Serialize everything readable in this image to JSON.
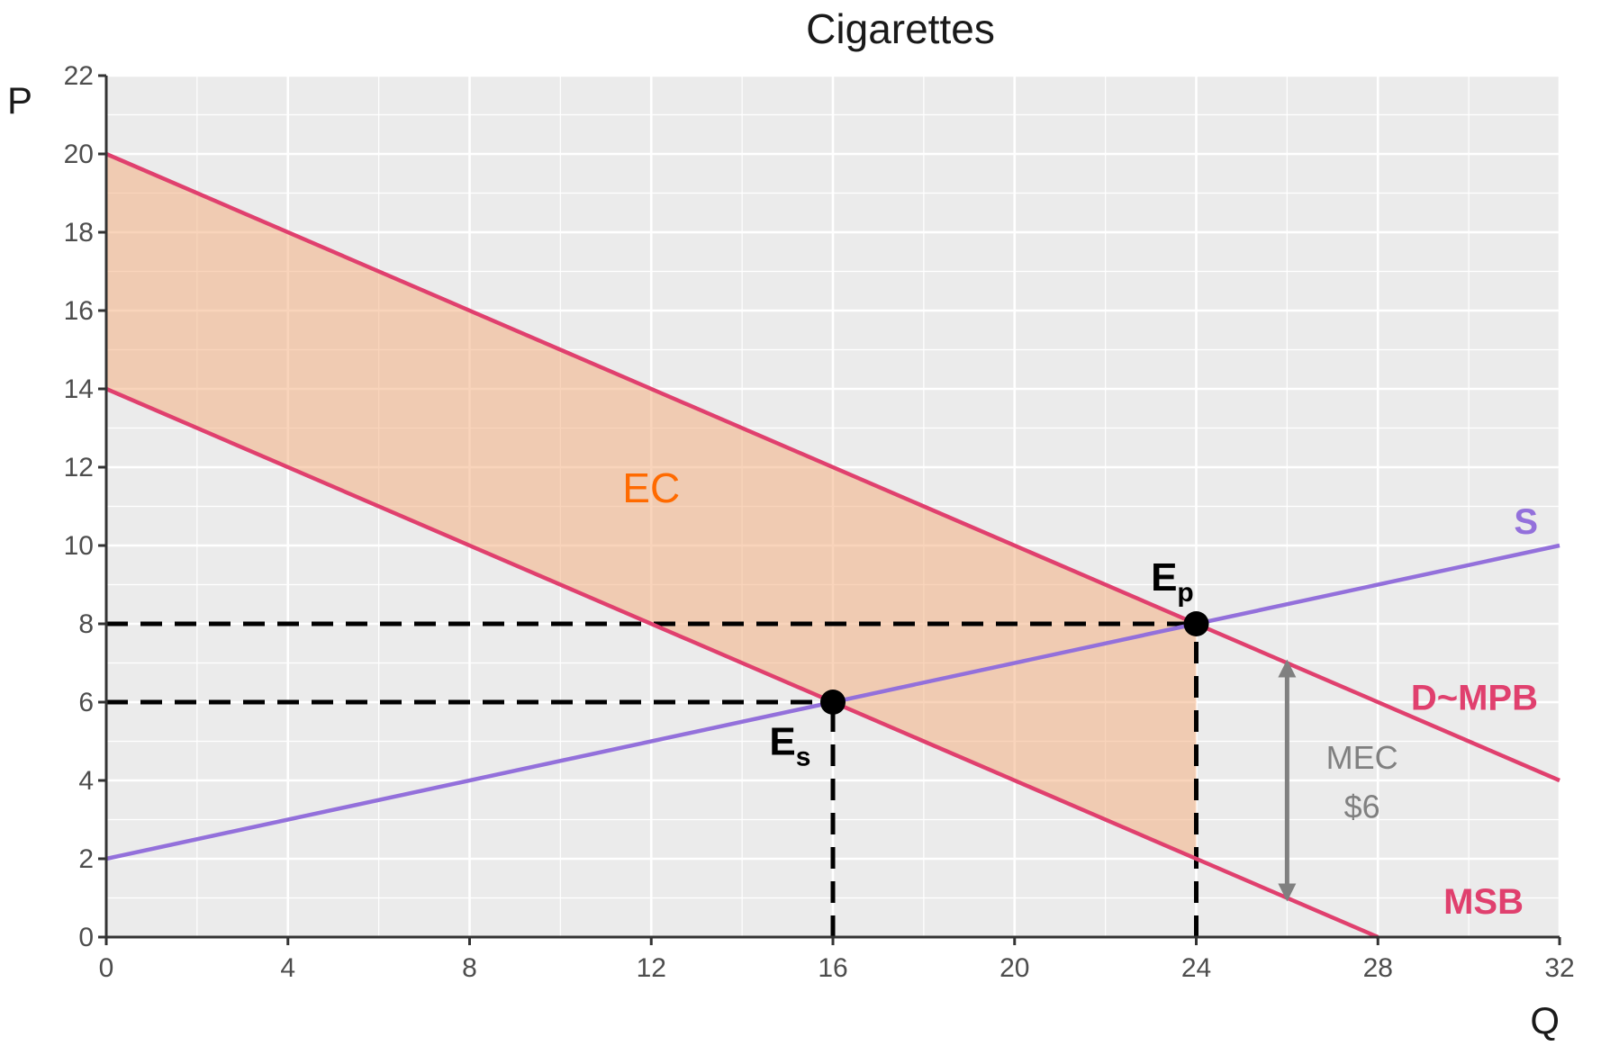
{
  "chart_data": {
    "type": "line",
    "title": "Cigarettes",
    "xlabel": "Q",
    "ylabel": "P",
    "xlim": [
      0,
      32
    ],
    "ylim": [
      0,
      22
    ],
    "x_ticks": [
      0,
      4,
      8,
      12,
      16,
      20,
      24,
      28,
      32
    ],
    "y_ticks": [
      0,
      2,
      4,
      6,
      8,
      10,
      12,
      14,
      16,
      18,
      20,
      22
    ],
    "grid": true,
    "legend": "none",
    "series": [
      {
        "name": "S",
        "x": [
          0,
          32
        ],
        "y": [
          2,
          10
        ],
        "color": "#9370db"
      },
      {
        "name": "D~MPB",
        "x": [
          0,
          32
        ],
        "y": [
          20,
          4
        ],
        "color": "#e0406e"
      },
      {
        "name": "MSB",
        "x": [
          0,
          28
        ],
        "y": [
          14,
          0
        ],
        "color": "#e0406e"
      }
    ],
    "shaded_region": {
      "label": "EC",
      "label_color": "#ff6a00",
      "fill": "#f4b183",
      "polygon": [
        [
          0,
          20
        ],
        [
          24,
          8
        ],
        [
          24,
          2
        ],
        [
          0,
          14
        ]
      ]
    },
    "points": [
      {
        "id": "Ep",
        "label": "E",
        "subscript": "p",
        "x": 24,
        "y": 8
      },
      {
        "id": "Es",
        "label": "E",
        "subscript": "s",
        "x": 16,
        "y": 6
      }
    ],
    "reference_lines": [
      {
        "from": [
          0,
          8
        ],
        "to": [
          24,
          8
        ]
      },
      {
        "from": [
          24,
          0
        ],
        "to": [
          24,
          8
        ]
      },
      {
        "from": [
          0,
          6
        ],
        "to": [
          16,
          6
        ]
      },
      {
        "from": [
          16,
          0
        ],
        "to": [
          16,
          6
        ]
      }
    ],
    "annotations": [
      {
        "type": "double-arrow",
        "x": 26,
        "y_from": 1,
        "y_to": 7,
        "color": "#808080"
      },
      {
        "type": "text",
        "text": "MEC",
        "color": "#808080"
      },
      {
        "type": "text",
        "text": "$6",
        "color": "#808080"
      }
    ]
  }
}
